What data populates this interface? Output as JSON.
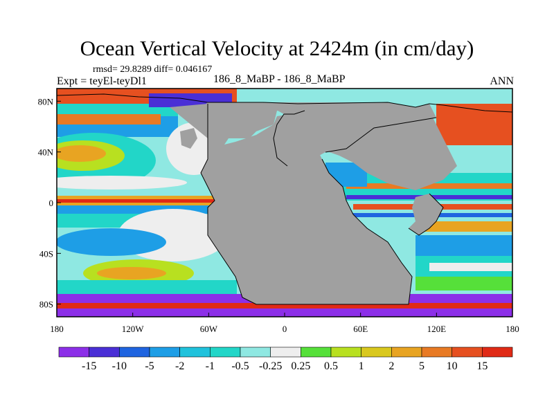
{
  "title": "Ocean Vertical Velocity at 2424m (in cm/day)",
  "stats": "rmsd= 29.8289 diff= 0.046167",
  "expt": "Expt = teyEl-teyDl1",
  "comparison": "186_8_MaBP - 186_8_MaBP",
  "season": "ANN",
  "map": {
    "projection": "cylindrical equidistant",
    "lon_range": [
      -180,
      180
    ],
    "lat_range": [
      -90,
      90
    ],
    "land_color": "#a0a0a0",
    "x_ticks": [
      {
        "lon": -180,
        "label": "180"
      },
      {
        "lon": -120,
        "label": "120W"
      },
      {
        "lon": -60,
        "label": "60W"
      },
      {
        "lon": 0,
        "label": "0"
      },
      {
        "lon": 60,
        "label": "60E"
      },
      {
        "lon": 120,
        "label": "120E"
      },
      {
        "lon": 180,
        "label": "180"
      }
    ],
    "y_ticks": [
      {
        "lat": 80,
        "label": "80N"
      },
      {
        "lat": 40,
        "label": "40N"
      },
      {
        "lat": 0,
        "label": "0"
      },
      {
        "lat": -40,
        "label": "40S"
      },
      {
        "lat": -80,
        "label": "80S"
      }
    ]
  },
  "colorbar": {
    "levels": [
      "-15",
      "-10",
      "-5",
      "-2",
      "-1",
      "-0.5",
      "-0.25",
      "0.25",
      "0.5",
      "1",
      "2",
      "5",
      "10",
      "15"
    ],
    "colors": [
      "#8c2fe8",
      "#4a2fd6",
      "#1f64e0",
      "#1e9ee6",
      "#20c2dc",
      "#22d6c8",
      "#8fe8e2",
      "#eeeeee",
      "#56e03a",
      "#b8e020",
      "#d9c81e",
      "#e8a422",
      "#e87a24",
      "#e65020",
      "#e02a16"
    ]
  }
}
